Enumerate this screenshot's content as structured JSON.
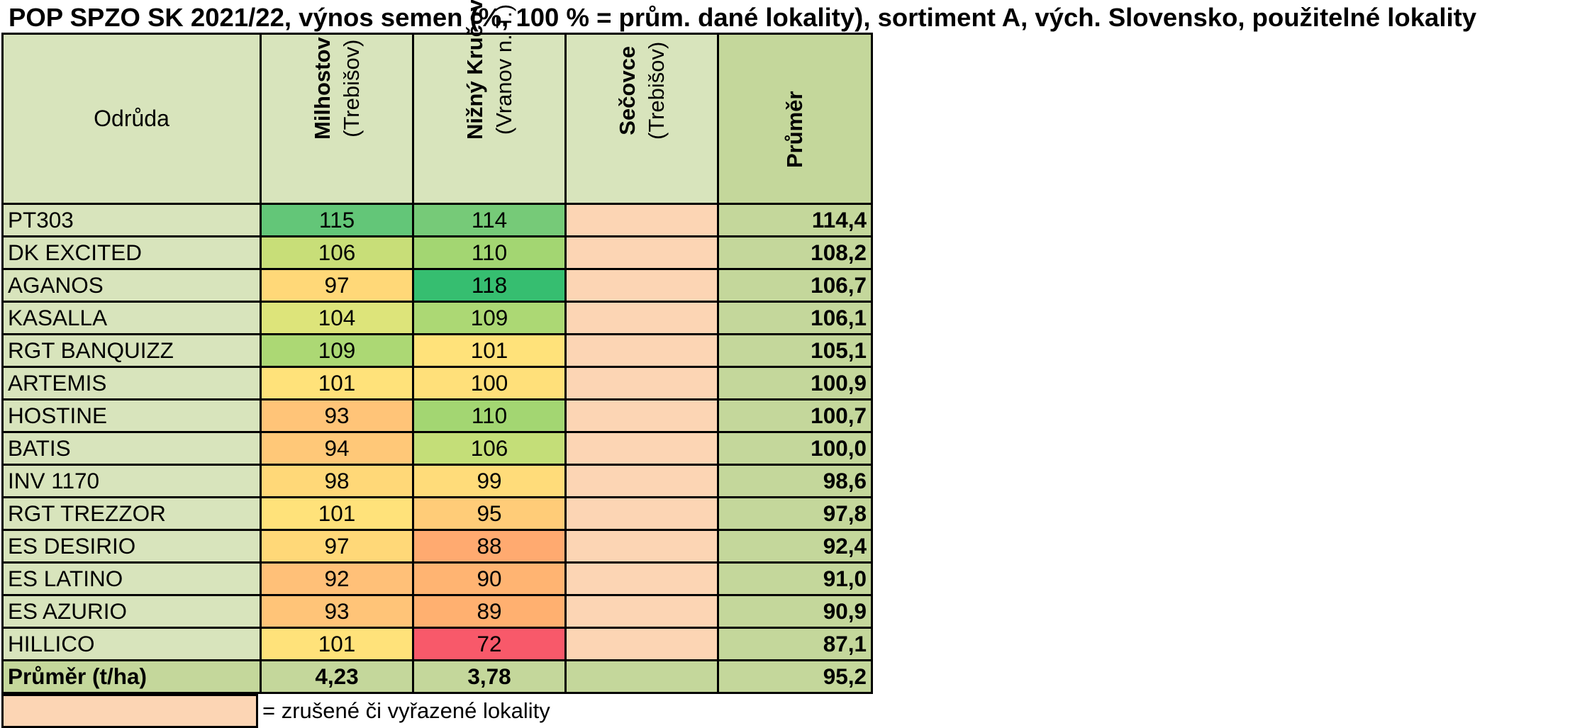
{
  "title": "POP SPZO SK 2021/22, výnos semen (%, 100 % = prům. dané lokality), sortiment A, vých. Slovensko, použitelné lokality",
  "header": {
    "variety_label": "Odrůda",
    "locations": [
      {
        "name": "Milhostov",
        "district": "(Trebišov)"
      },
      {
        "name": "Nižný Kručov",
        "district": "(Vranov n. T.)"
      },
      {
        "name": "Sečovce",
        "district": "(Trebišov)"
      }
    ],
    "average_label": "Průměr"
  },
  "rows": [
    {
      "variety": "PT303",
      "milhostov": "115",
      "nizny_krucov": "114",
      "secovce": "",
      "average": "114,4",
      "colors": [
        "#63c678",
        "#76ca78"
      ]
    },
    {
      "variety": "DK EXCITED",
      "milhostov": "106",
      "nizny_krucov": "110",
      "secovce": "",
      "average": "108,2",
      "colors": [
        "#c8de78",
        "#a3d672"
      ]
    },
    {
      "variety": "AGANOS",
      "milhostov": "97",
      "nizny_krucov": "118",
      "secovce": "",
      "average": "106,7",
      "colors": [
        "#ffd878",
        "#36be70"
      ]
    },
    {
      "variety": "KASALLA",
      "milhostov": "104",
      "nizny_krucov": "109",
      "secovce": "",
      "average": "106,1",
      "colors": [
        "#dde47a",
        "#acd874"
      ]
    },
    {
      "variety": "RGT BANQUIZZ",
      "milhostov": "109",
      "nizny_krucov": "101",
      "secovce": "",
      "average": "105,1",
      "colors": [
        "#acd874",
        "#ffe27a"
      ]
    },
    {
      "variety": "ARTEMIS",
      "milhostov": "101",
      "nizny_krucov": "100",
      "secovce": "",
      "average": "100,9",
      "colors": [
        "#ffe27a",
        "#ffe07a"
      ]
    },
    {
      "variety": "HOSTINE",
      "milhostov": "93",
      "nizny_krucov": "110",
      "secovce": "",
      "average": "100,7",
      "colors": [
        "#ffc478",
        "#a3d672"
      ]
    },
    {
      "variety": "BATIS",
      "milhostov": "94",
      "nizny_krucov": "106",
      "secovce": "",
      "average": "100,0",
      "colors": [
        "#ffc878",
        "#c4de78"
      ]
    },
    {
      "variety": "INV 1170",
      "milhostov": "98",
      "nizny_krucov": "99",
      "secovce": "",
      "average": "98,6",
      "colors": [
        "#ffd878",
        "#ffdc7a"
      ]
    },
    {
      "variety": "RGT TREZZOR",
      "milhostov": "101",
      "nizny_krucov": "95",
      "secovce": "",
      "average": "97,8",
      "colors": [
        "#ffe27a",
        "#ffcc78"
      ]
    },
    {
      "variety": "ES DESIRIO",
      "milhostov": "97",
      "nizny_krucov": "88",
      "secovce": "",
      "average": "92,4",
      "colors": [
        "#ffd878",
        "#ffaa70"
      ]
    },
    {
      "variety": "ES LATINO",
      "milhostov": "92",
      "nizny_krucov": "90",
      "secovce": "",
      "average": "91,0",
      "colors": [
        "#ffc078",
        "#ffb472"
      ]
    },
    {
      "variety": "ES AZURIO",
      "milhostov": "93",
      "nizny_krucov": "89",
      "secovce": "",
      "average": "90,9",
      "colors": [
        "#ffc478",
        "#ffb070"
      ]
    },
    {
      "variety": "HILLICO",
      "milhostov": "101",
      "nizny_krucov": "72",
      "secovce": "",
      "average": "87,1",
      "colors": [
        "#ffe27a",
        "#f8596a"
      ]
    }
  ],
  "footer": {
    "label": "Průměr (t/ha)",
    "milhostov": "4,23",
    "nizny_krucov": "3,78",
    "secovce": "",
    "average": "95,2"
  },
  "legend": {
    "text": "= zrušené či vyřazené lokality",
    "color": "#fcd5b4"
  },
  "colors": {
    "header_bg": "#d8e4bc",
    "average_bg": "#c4d79b",
    "excluded_bg": "#fcd5b4"
  }
}
